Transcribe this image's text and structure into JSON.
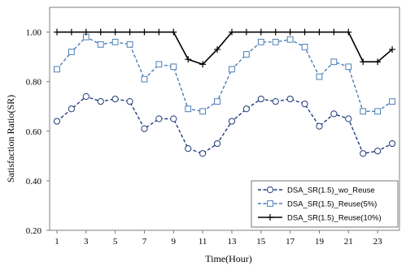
{
  "chart_data": {
    "type": "line",
    "xlabel": "Time(Hour)",
    "ylabel": "Satisfaction Ratio(SR)",
    "ylim": [
      0.2,
      1.1
    ],
    "yticks": [
      "0.20",
      "0.40",
      "0.60",
      "0.80",
      "1.00"
    ],
    "ytick_values": [
      0.2,
      0.4,
      0.6,
      0.8,
      1.0
    ],
    "xlim": [
      0.5,
      24.5
    ],
    "xticks": [
      "1",
      "3",
      "5",
      "7",
      "9",
      "11",
      "13",
      "15",
      "17",
      "19",
      "21",
      "23"
    ],
    "xtick_values": [
      1,
      3,
      5,
      7,
      9,
      11,
      13,
      15,
      17,
      19,
      21,
      23
    ],
    "grid": false,
    "legend_position": "bottom-right",
    "x": [
      1,
      2,
      3,
      4,
      5,
      6,
      7,
      8,
      9,
      10,
      11,
      12,
      13,
      14,
      15,
      16,
      17,
      18,
      19,
      20,
      21,
      22,
      23,
      24
    ],
    "series": [
      {
        "name": "DSA_SR(1.5)_wo_Reuse",
        "color": "#1f3b7a",
        "dash": "dash",
        "marker": "circle",
        "values": [
          0.64,
          0.69,
          0.74,
          0.72,
          0.73,
          0.72,
          0.61,
          0.65,
          0.65,
          0.53,
          0.51,
          0.55,
          0.64,
          0.69,
          0.73,
          0.72,
          0.73,
          0.71,
          0.62,
          0.67,
          0.65,
          0.51,
          0.52,
          0.55
        ]
      },
      {
        "name": "DSA_SR(1.5)_Reuse(5%)",
        "color": "#4a7fb5",
        "dash": "dash",
        "marker": "square",
        "values": [
          0.85,
          0.92,
          0.98,
          0.95,
          0.96,
          0.95,
          0.81,
          0.87,
          0.86,
          0.69,
          0.68,
          0.72,
          0.85,
          0.91,
          0.96,
          0.96,
          0.97,
          0.94,
          0.82,
          0.88,
          0.86,
          0.68,
          0.68,
          0.72
        ]
      },
      {
        "name": "DSA_SR(1.5)_Reuse(10%)",
        "color": "#000000",
        "dash": "solid",
        "marker": "plus",
        "values": [
          1.0,
          1.0,
          1.0,
          1.0,
          1.0,
          1.0,
          1.0,
          1.0,
          1.0,
          0.89,
          0.87,
          0.93,
          1.0,
          1.0,
          1.0,
          1.0,
          1.0,
          1.0,
          1.0,
          1.0,
          1.0,
          0.88,
          0.88,
          0.93
        ]
      }
    ]
  }
}
